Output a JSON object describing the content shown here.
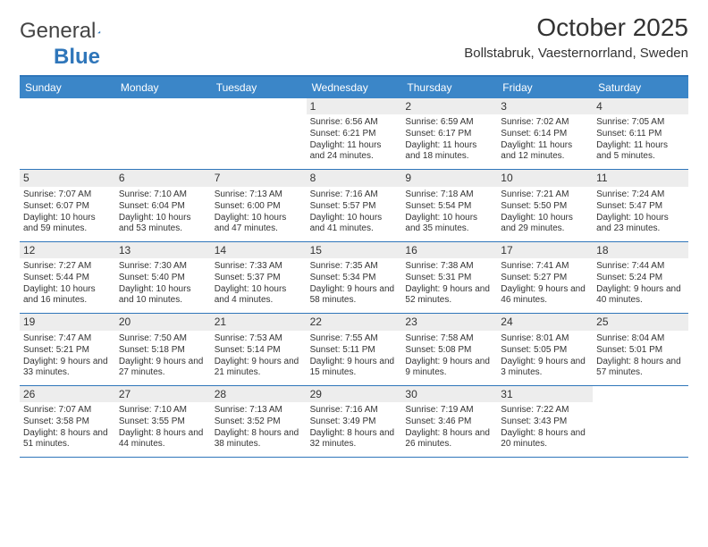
{
  "logo": {
    "text1": "General",
    "text2": "Blue"
  },
  "title": "October 2025",
  "location": "Bollstabruk, Vaesternorrland, Sweden",
  "day_names": [
    "Sunday",
    "Monday",
    "Tuesday",
    "Wednesday",
    "Thursday",
    "Friday",
    "Saturday"
  ],
  "colors": {
    "accent": "#3b86c8",
    "accent_dark": "#2f76ba",
    "daynum_bg": "#ededed",
    "text": "#333333",
    "bg": "#ffffff"
  },
  "weeks": [
    [
      {
        "empty": true
      },
      {
        "empty": true
      },
      {
        "empty": true
      },
      {
        "day": "1",
        "sunrise": "Sunrise: 6:56 AM",
        "sunset": "Sunset: 6:21 PM",
        "daylight": "Daylight: 11 hours and 24 minutes."
      },
      {
        "day": "2",
        "sunrise": "Sunrise: 6:59 AM",
        "sunset": "Sunset: 6:17 PM",
        "daylight": "Daylight: 11 hours and 18 minutes."
      },
      {
        "day": "3",
        "sunrise": "Sunrise: 7:02 AM",
        "sunset": "Sunset: 6:14 PM",
        "daylight": "Daylight: 11 hours and 12 minutes."
      },
      {
        "day": "4",
        "sunrise": "Sunrise: 7:05 AM",
        "sunset": "Sunset: 6:11 PM",
        "daylight": "Daylight: 11 hours and 5 minutes."
      }
    ],
    [
      {
        "day": "5",
        "sunrise": "Sunrise: 7:07 AM",
        "sunset": "Sunset: 6:07 PM",
        "daylight": "Daylight: 10 hours and 59 minutes."
      },
      {
        "day": "6",
        "sunrise": "Sunrise: 7:10 AM",
        "sunset": "Sunset: 6:04 PM",
        "daylight": "Daylight: 10 hours and 53 minutes."
      },
      {
        "day": "7",
        "sunrise": "Sunrise: 7:13 AM",
        "sunset": "Sunset: 6:00 PM",
        "daylight": "Daylight: 10 hours and 47 minutes."
      },
      {
        "day": "8",
        "sunrise": "Sunrise: 7:16 AM",
        "sunset": "Sunset: 5:57 PM",
        "daylight": "Daylight: 10 hours and 41 minutes."
      },
      {
        "day": "9",
        "sunrise": "Sunrise: 7:18 AM",
        "sunset": "Sunset: 5:54 PM",
        "daylight": "Daylight: 10 hours and 35 minutes."
      },
      {
        "day": "10",
        "sunrise": "Sunrise: 7:21 AM",
        "sunset": "Sunset: 5:50 PM",
        "daylight": "Daylight: 10 hours and 29 minutes."
      },
      {
        "day": "11",
        "sunrise": "Sunrise: 7:24 AM",
        "sunset": "Sunset: 5:47 PM",
        "daylight": "Daylight: 10 hours and 23 minutes."
      }
    ],
    [
      {
        "day": "12",
        "sunrise": "Sunrise: 7:27 AM",
        "sunset": "Sunset: 5:44 PM",
        "daylight": "Daylight: 10 hours and 16 minutes."
      },
      {
        "day": "13",
        "sunrise": "Sunrise: 7:30 AM",
        "sunset": "Sunset: 5:40 PM",
        "daylight": "Daylight: 10 hours and 10 minutes."
      },
      {
        "day": "14",
        "sunrise": "Sunrise: 7:33 AM",
        "sunset": "Sunset: 5:37 PM",
        "daylight": "Daylight: 10 hours and 4 minutes."
      },
      {
        "day": "15",
        "sunrise": "Sunrise: 7:35 AM",
        "sunset": "Sunset: 5:34 PM",
        "daylight": "Daylight: 9 hours and 58 minutes."
      },
      {
        "day": "16",
        "sunrise": "Sunrise: 7:38 AM",
        "sunset": "Sunset: 5:31 PM",
        "daylight": "Daylight: 9 hours and 52 minutes."
      },
      {
        "day": "17",
        "sunrise": "Sunrise: 7:41 AM",
        "sunset": "Sunset: 5:27 PM",
        "daylight": "Daylight: 9 hours and 46 minutes."
      },
      {
        "day": "18",
        "sunrise": "Sunrise: 7:44 AM",
        "sunset": "Sunset: 5:24 PM",
        "daylight": "Daylight: 9 hours and 40 minutes."
      }
    ],
    [
      {
        "day": "19",
        "sunrise": "Sunrise: 7:47 AM",
        "sunset": "Sunset: 5:21 PM",
        "daylight": "Daylight: 9 hours and 33 minutes."
      },
      {
        "day": "20",
        "sunrise": "Sunrise: 7:50 AM",
        "sunset": "Sunset: 5:18 PM",
        "daylight": "Daylight: 9 hours and 27 minutes."
      },
      {
        "day": "21",
        "sunrise": "Sunrise: 7:53 AM",
        "sunset": "Sunset: 5:14 PM",
        "daylight": "Daylight: 9 hours and 21 minutes."
      },
      {
        "day": "22",
        "sunrise": "Sunrise: 7:55 AM",
        "sunset": "Sunset: 5:11 PM",
        "daylight": "Daylight: 9 hours and 15 minutes."
      },
      {
        "day": "23",
        "sunrise": "Sunrise: 7:58 AM",
        "sunset": "Sunset: 5:08 PM",
        "daylight": "Daylight: 9 hours and 9 minutes."
      },
      {
        "day": "24",
        "sunrise": "Sunrise: 8:01 AM",
        "sunset": "Sunset: 5:05 PM",
        "daylight": "Daylight: 9 hours and 3 minutes."
      },
      {
        "day": "25",
        "sunrise": "Sunrise: 8:04 AM",
        "sunset": "Sunset: 5:01 PM",
        "daylight": "Daylight: 8 hours and 57 minutes."
      }
    ],
    [
      {
        "day": "26",
        "sunrise": "Sunrise: 7:07 AM",
        "sunset": "Sunset: 3:58 PM",
        "daylight": "Daylight: 8 hours and 51 minutes."
      },
      {
        "day": "27",
        "sunrise": "Sunrise: 7:10 AM",
        "sunset": "Sunset: 3:55 PM",
        "daylight": "Daylight: 8 hours and 44 minutes."
      },
      {
        "day": "28",
        "sunrise": "Sunrise: 7:13 AM",
        "sunset": "Sunset: 3:52 PM",
        "daylight": "Daylight: 8 hours and 38 minutes."
      },
      {
        "day": "29",
        "sunrise": "Sunrise: 7:16 AM",
        "sunset": "Sunset: 3:49 PM",
        "daylight": "Daylight: 8 hours and 32 minutes."
      },
      {
        "day": "30",
        "sunrise": "Sunrise: 7:19 AM",
        "sunset": "Sunset: 3:46 PM",
        "daylight": "Daylight: 8 hours and 26 minutes."
      },
      {
        "day": "31",
        "sunrise": "Sunrise: 7:22 AM",
        "sunset": "Sunset: 3:43 PM",
        "daylight": "Daylight: 8 hours and 20 minutes."
      },
      {
        "empty": true
      }
    ]
  ]
}
